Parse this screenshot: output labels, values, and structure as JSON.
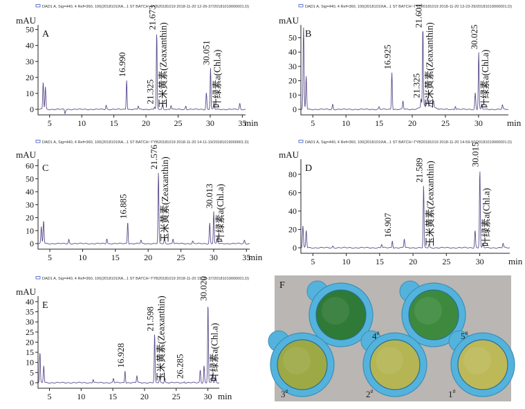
{
  "panels": [
    {
      "id": "A",
      "header": "DAD1 A, Sig=440, 4 Ref=360, 100(20181019\\A...1 ST BATCH~TYB20181019 2018-11-20 12-26-37/20181019000001.D)",
      "y_unit": "mAU",
      "x_unit": "min",
      "y_ticks": [
        "0",
        "10",
        "20",
        "30",
        "40",
        "50"
      ],
      "ymax": 52,
      "x_ticks": [
        "5",
        "10",
        "15",
        "20",
        "25",
        "30",
        "35"
      ],
      "xmin": 3.2,
      "xmax": 35.5,
      "peaks": [
        {
          "rt": 16.99,
          "h": 18.5,
          "label": "16.990"
        },
        {
          "rt": 21.325,
          "h": 1.5,
          "label": "21.325"
        },
        {
          "rt": 21.673,
          "h": 48,
          "label": "21.673"
        },
        {
          "rt": 30.051,
          "h": 26,
          "label": "30.051"
        }
      ],
      "zeaxanthin_label": "玉米黄素(Zeaxanthin)",
      "chla_label": "叶绿素a(Chl.a)"
    },
    {
      "id": "B",
      "header": "DAD1 A, Sig=440, 4 Ref=360, 100(20181019\\A...1 ST BATCH~TYB20181019 2018-11-20 13-23-29/20181019000001.D)",
      "y_unit": "mAU",
      "x_unit": "min",
      "y_ticks": [
        "0",
        "10",
        "20",
        "30",
        "40",
        "50"
      ],
      "ymax": 58,
      "x_ticks": [
        "5",
        "10",
        "15",
        "20",
        "25",
        "30"
      ],
      "xmin": 3.2,
      "xmax": 34.5,
      "peaks": [
        {
          "rt": 16.925,
          "h": 26,
          "label": "16.925"
        },
        {
          "rt": 21.325,
          "h": 6,
          "label": "21.325"
        },
        {
          "rt": 21.601,
          "h": 55,
          "label": "21.601"
        },
        {
          "rt": 30.025,
          "h": 40,
          "label": "30.025"
        }
      ],
      "zeaxanthin_label": "玉米黄素(Zeaxanthin)",
      "chla_label": "叶绿素a(Chl.a)"
    },
    {
      "id": "C",
      "header": "DAD1 A, Sig=440, 4 Ref=360, 100(20181019\\A...1 ST BATCH~TYB20181019 2018-11-20 14-11-19/20181019000001.D)",
      "y_unit": "mAU",
      "x_unit": "min",
      "y_ticks": [
        "0",
        "10",
        "20",
        "30",
        "40",
        "50",
        "60"
      ],
      "ymax": 64,
      "x_ticks": [
        "5",
        "10",
        "15",
        "20",
        "25",
        "30",
        "35"
      ],
      "xmin": 3.2,
      "xmax": 35.5,
      "peaks": [
        {
          "rt": 16.885,
          "h": 17,
          "label": "16.885"
        },
        {
          "rt": 21.576,
          "h": 55,
          "label": "21.576"
        },
        {
          "rt": 30.013,
          "h": 25,
          "label": "30.013"
        }
      ],
      "zeaxanthin_label": "玉米黄素(Zeaxanthin)",
      "chla_label": "叶绿素a(Chl.a)"
    },
    {
      "id": "D",
      "header": "DAD1 A, Sig=440, 4 Ref=360, 100(20181019\\A...1 ST BATCH~TYB20181019 2018-11-20 14-59-50/20181019000001.D)",
      "y_unit": "mAU",
      "x_unit": "min",
      "y_ticks": [
        "0",
        "20",
        "40",
        "60",
        "80"
      ],
      "ymax": 95,
      "x_ticks": [
        "5",
        "10",
        "15",
        "20",
        "25",
        "30"
      ],
      "xmin": 3.2,
      "xmax": 34.5,
      "peaks": [
        {
          "rt": 16.907,
          "h": 8,
          "label": "16.907"
        },
        {
          "rt": 21.589,
          "h": 68,
          "label": "21.589"
        },
        {
          "rt": 30.015,
          "h": 85,
          "label": "30.015"
        }
      ],
      "zeaxanthin_label": "玉米黄素(Zeaxanthin)",
      "chla_label": "叶绿素a(Chl.a)"
    },
    {
      "id": "E",
      "header": "DAD1 A, Sig=440, 4 Ref=360, 100(20181019\\A...1 ST BATCH~TYB20181019 2018-11-20 15-39-37/20181019000001.D)",
      "y_unit": "mAU",
      "x_unit": "min",
      "y_ticks": [
        "0",
        "5",
        "10",
        "15",
        "20",
        "25",
        "30",
        "35",
        "40"
      ],
      "ymax": 42,
      "x_ticks": [
        "5",
        "10",
        "15",
        "20",
        "25",
        "30"
      ],
      "xmin": 3.2,
      "xmax": 31.8,
      "peaks": [
        {
          "rt": 16.928,
          "h": 6,
          "label": "16.928"
        },
        {
          "rt": 21.598,
          "h": 24,
          "label": "21.598"
        },
        {
          "rt": 26.285,
          "h": 0.6,
          "label": "26.285"
        },
        {
          "rt": 30.02,
          "h": 39,
          "label": "30.020"
        }
      ],
      "zeaxanthin_label": "玉米黄素(Zeaxanthin)",
      "chla_label": "叶绿素a(Chl.a)"
    }
  ],
  "photo": {
    "label": "F",
    "dishes": [
      {
        "label": "4",
        "sup": "#",
        "color": "#2f7a36"
      },
      {
        "label": "5",
        "sup": "#",
        "color": "#3d8a3e"
      },
      {
        "label": "3",
        "sup": "#",
        "color": "#9da945"
      },
      {
        "label": "2",
        "sup": "#",
        "color": "#b5b553"
      },
      {
        "label": "1",
        "sup": "#",
        "color": "#bdb958"
      }
    ],
    "dish_blue": "#54b3dc",
    "background": "#b9b6b3"
  },
  "colors": {
    "trace": "#5a4a8a",
    "legend_box": "#3b55c9"
  }
}
